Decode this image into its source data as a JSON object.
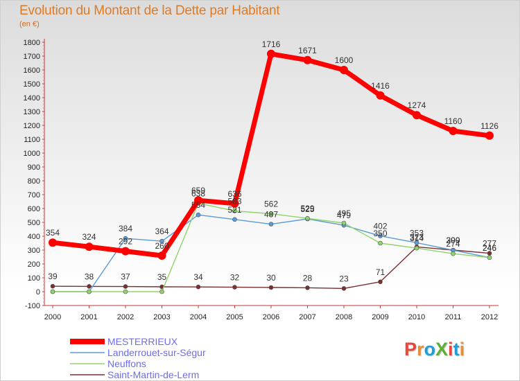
{
  "header": {
    "title": "Evolution du Montant de la Dette par Habitant",
    "subtitle": "(en €)"
  },
  "logo": {
    "text": "ProXiti",
    "letters": [
      "P",
      "r",
      "o",
      "X",
      "i",
      "t",
      "i"
    ],
    "colors": [
      "#e8483b",
      "#f08c2b",
      "#1f9ed8",
      "#5cb135",
      "#e8483b",
      "#1f9ed8",
      "#f08c2b"
    ]
  },
  "chart_data": {
    "type": "line",
    "title": "Evolution du Montant de la Dette par Habitant",
    "subtitle": "(en €)",
    "xlabel": "",
    "ylabel": "",
    "x": [
      "2000",
      "2001",
      "2002",
      "2003",
      "2004",
      "2005",
      "2006",
      "2007",
      "2008",
      "2009",
      "2010",
      "2011",
      "2012"
    ],
    "ylim": [
      -100,
      1800
    ],
    "yticks": [
      -100,
      0,
      100,
      200,
      300,
      400,
      500,
      600,
      700,
      800,
      900,
      1000,
      1100,
      1200,
      1300,
      1400,
      1500,
      1600,
      1700,
      1800
    ],
    "grid": false,
    "legend": "bottom-left",
    "series": [
      {
        "name": "MESTERRIEUX",
        "color": "#ff0000",
        "values": [
          354,
          324,
          292,
          260,
          659,
          636,
          1716,
          1671,
          1600,
          1416,
          1274,
          1160,
          1126
        ],
        "labels": [
          "354",
          "324",
          "292",
          "260",
          "659",
          "636",
          "1716",
          "1671",
          "1600",
          "1416",
          "1274",
          "1160",
          "1126"
        ]
      },
      {
        "name": "Landerrouet-sur-Ségur",
        "color": "#5b9bd5",
        "values": [
          0,
          0,
          384,
          364,
          554,
          521,
          487,
          525,
          479,
          402,
          353,
          299,
          246
        ],
        "labels": [
          "",
          "",
          "384",
          "364",
          "554",
          "521",
          "487",
          "525",
          "479",
          "402",
          "353",
          "299",
          "246"
        ]
      },
      {
        "name": "Neuffons",
        "color": "#8fd36b",
        "values": [
          0,
          0,
          0,
          0,
          638,
          583,
          562,
          529,
          495,
          350,
          314,
          274,
          246
        ],
        "labels": [
          "",
          "",
          "",
          "",
          "638",
          "583",
          "562",
          "529",
          "495",
          "350",
          "314",
          "274",
          "246"
        ]
      },
      {
        "name": "Saint-Martin-de-Lerm",
        "color": "#7b2e2e",
        "values": [
          39,
          38,
          37,
          35,
          34,
          32,
          30,
          28,
          23,
          71,
          323,
          300,
          277
        ],
        "labels": [
          "39",
          "38",
          "37",
          "35",
          "34",
          "32",
          "30",
          "28",
          "23",
          "71",
          "323",
          "300",
          "277"
        ]
      }
    ]
  }
}
